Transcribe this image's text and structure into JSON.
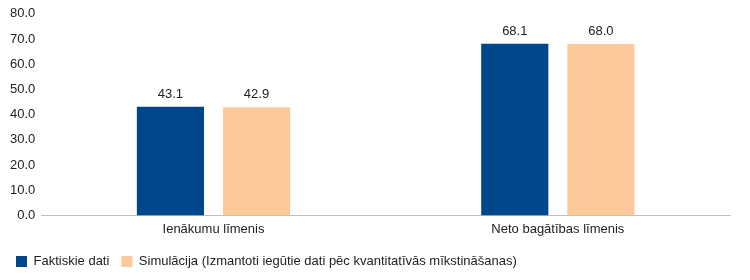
{
  "chart_data": {
    "type": "bar",
    "categories": [
      "Ienākumu līmenis",
      "Neto bagātības līmenis"
    ],
    "series": [
      {
        "name": "Faktiskie dati",
        "color": "#00468b",
        "values": [
          43.1,
          68.1
        ],
        "value_labels": [
          "43.1",
          "68.1"
        ]
      },
      {
        "name": "Simulācija (Izmantoti iegūtie dati pēc kvantitatīvās mīkstināšanas)",
        "color": "#fcca9a",
        "values": [
          42.9,
          68.0
        ],
        "value_labels": [
          "42.9",
          "68.0"
        ]
      }
    ],
    "ylim": [
      0,
      80
    ],
    "yticks": [
      {
        "value": 0,
        "label": "0.0"
      },
      {
        "value": 10,
        "label": "10.0"
      },
      {
        "value": 20,
        "label": "20.0"
      },
      {
        "value": 30,
        "label": "30.0"
      },
      {
        "value": 40,
        "label": "40.0"
      },
      {
        "value": 50,
        "label": "50.0"
      },
      {
        "value": 60,
        "label": "60.0"
      },
      {
        "value": 70,
        "label": "70.0"
      },
      {
        "value": 80,
        "label": "80.0"
      }
    ],
    "grid": false,
    "legend": "bottom",
    "data_labels": true
  }
}
